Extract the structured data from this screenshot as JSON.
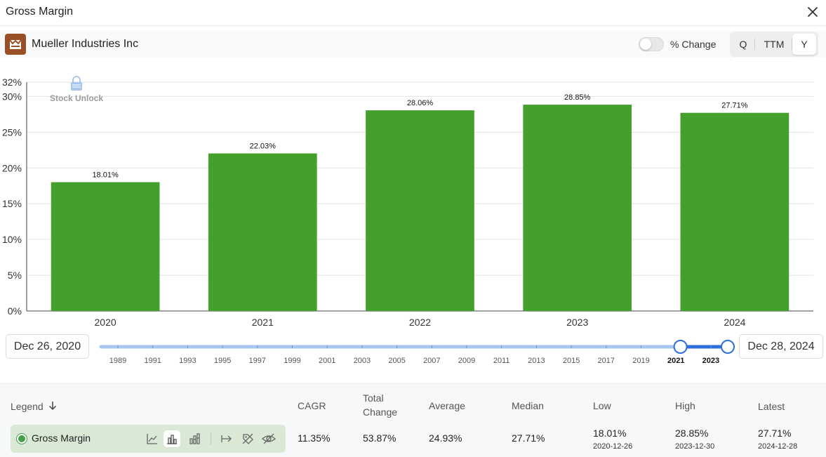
{
  "window": {
    "title": "Gross Margin",
    "close_icon": "close-icon"
  },
  "header": {
    "company": "Mueller Industries Inc",
    "logo_icon": "company-logo-icon",
    "toggle_label": "% Change",
    "toggle_on": false,
    "periods": [
      "Q",
      "TTM",
      "Y"
    ],
    "active_period": "Y"
  },
  "chart_data": {
    "type": "bar",
    "categories": [
      "2020",
      "2021",
      "2022",
      "2023",
      "2024"
    ],
    "values": [
      18.01,
      22.03,
      28.06,
      28.85,
      27.71
    ],
    "data_labels": [
      "18.01%",
      "22.03%",
      "28.06%",
      "28.85%",
      "27.71%"
    ],
    "y_ticks": [
      "0%",
      "5%",
      "10%",
      "15%",
      "20%",
      "25%",
      "30%",
      "32%"
    ],
    "ylim": [
      0,
      32
    ],
    "bar_color": "#43a02a",
    "grid": true,
    "watermark": "Stock Unlock"
  },
  "range": {
    "start_label": "Dec 26, 2020",
    "end_label": "Dec 28, 2024",
    "years": [
      "1989",
      "1991",
      "1993",
      "1995",
      "1997",
      "1999",
      "2001",
      "2003",
      "2005",
      "2007",
      "2009",
      "2011",
      "2013",
      "2015",
      "2017",
      "2019",
      "2021",
      "2023"
    ],
    "selected_years": [
      "2021",
      "2023"
    ],
    "start_fraction": 0.9245,
    "end_fraction": 1.0
  },
  "stats": {
    "headers": {
      "legend": "Legend",
      "cagr": "CAGR",
      "total_change_1": "Total",
      "total_change_2": "Change",
      "average": "Average",
      "median": "Median",
      "low": "Low",
      "high": "High",
      "latest": "Latest"
    },
    "series_name": "Gross Margin",
    "series_color": "#43a047",
    "cagr": "11.35%",
    "total_change": "53.87%",
    "average": "24.93%",
    "median": "27.71%",
    "low": "18.01%",
    "low_date": "2020-12-26",
    "high": "28.85%",
    "high_date": "2023-12-30",
    "latest": "27.71%",
    "latest_date": "2024-12-28",
    "icons": [
      "line-chart-icon",
      "bar-chart-icon",
      "stacked-bar-icon",
      "arrow-right-bar-icon",
      "no-tag-icon",
      "hide-eye-icon"
    ]
  }
}
